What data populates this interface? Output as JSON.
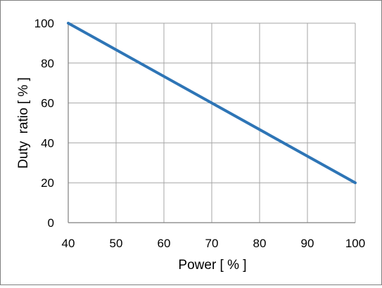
{
  "chart_data": {
    "type": "line",
    "title": "",
    "xlabel": "Power [ % ]",
    "ylabel": "Duty  ratio [ % ]",
    "xlim": [
      40,
      100
    ],
    "ylim": [
      0,
      100
    ],
    "x_ticks": [
      "40",
      "50",
      "60",
      "70",
      "80",
      "90",
      "100"
    ],
    "y_ticks": [
      "0",
      "20",
      "40",
      "60",
      "80",
      "100"
    ],
    "grid": true,
    "legend": "none",
    "series": [
      {
        "x": [
          40,
          100
        ],
        "y": [
          100,
          20
        ],
        "color": "#2e75b6"
      }
    ]
  }
}
